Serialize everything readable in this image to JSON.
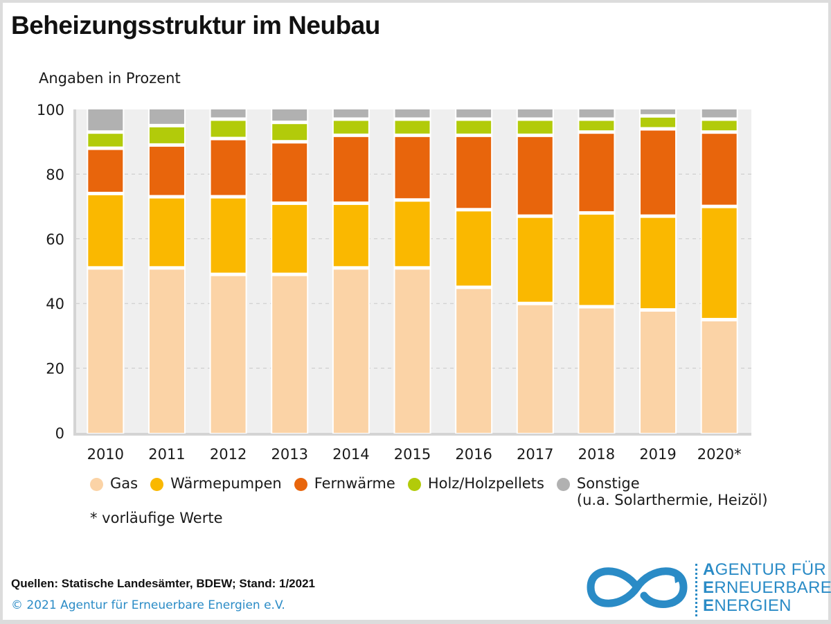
{
  "header": {
    "title": "Beheizungsstruktur im Neubau",
    "unit_label": "Angaben in Prozent"
  },
  "chart_data": {
    "type": "bar",
    "stacked": true,
    "title": "Beheizungsstruktur im Neubau",
    "xlabel": "",
    "ylabel": "Angaben in Prozent",
    "ylim": [
      0,
      100
    ],
    "yticks": [
      0,
      20,
      40,
      60,
      80,
      100
    ],
    "grid": true,
    "legend_position": "bottom",
    "categories": [
      "2010",
      "2011",
      "2012",
      "2013",
      "2014",
      "2015",
      "2016",
      "2017",
      "2018",
      "2019",
      "2020*"
    ],
    "series": [
      {
        "name": "Gas",
        "color": "#fbd3a6",
        "values": [
          51,
          51,
          49,
          49,
          51,
          51,
          45,
          40,
          39,
          38,
          35
        ]
      },
      {
        "name": "Wärmepumpen",
        "color": "#fab800",
        "values": [
          23,
          22,
          24,
          22,
          20,
          21,
          24,
          27,
          29,
          29,
          35
        ]
      },
      {
        "name": "Fernwärme",
        "color": "#e8650c",
        "values": [
          14,
          16,
          18,
          19,
          21,
          20,
          23,
          25,
          25,
          27,
          23
        ]
      },
      {
        "name": "Holz/Holzpellets",
        "color": "#b2cb0a",
        "values": [
          5,
          6,
          6,
          6,
          5,
          5,
          5,
          5,
          4,
          4,
          4
        ]
      },
      {
        "name": "Sonstige (u.a. Solarthermie, Heizöl)",
        "color": "#b1b1b1",
        "values": [
          7,
          5,
          3,
          4,
          3,
          3,
          3,
          3,
          3,
          2,
          3
        ]
      }
    ]
  },
  "legend": {
    "items": [
      {
        "label": "Gas",
        "color": "#fbd3a6"
      },
      {
        "label": "Wärmepumpen",
        "color": "#fab800"
      },
      {
        "label": "Fernwärme",
        "color": "#e8650c"
      },
      {
        "label": "Holz/Holzpellets",
        "color": "#b2cb0a"
      },
      {
        "label": "Sonstige",
        "sublabel": "(u.a. Solarthermie, Heizöl)",
        "color": "#b1b1b1"
      }
    ]
  },
  "footnote": "* vorläufige Werte",
  "footer": {
    "source": "Quellen: Statische Landesämter, BDEW; Stand: 1/2021",
    "copyright": "© 2021 Agentur für Erneuerbare Energien e.V.",
    "logo": {
      "line1_initial": "A",
      "line1_rest": "GENTUR FÜR",
      "line2_initial": "E",
      "line2_rest": "RNEUERBARE",
      "line3_initial": "E",
      "line3_rest": "NERGIEN",
      "color": "#2a8bc6"
    }
  }
}
